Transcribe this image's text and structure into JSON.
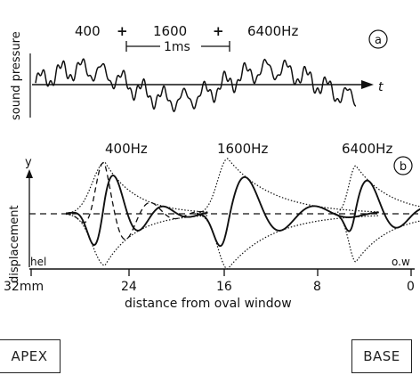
{
  "panel_a": {
    "freq_1": "400",
    "plus_1": "+",
    "freq_2": "1600",
    "plus_2": "+",
    "freq_3": "6400Hz",
    "scale_label": "1ms",
    "y_label": "sound pressure",
    "axis_arrow_label": "t",
    "panel_marker": "a"
  },
  "panel_b": {
    "wave_labels": [
      "400Hz",
      "1600Hz",
      "6400Hz"
    ],
    "y_top_label": "y",
    "y_label": "displacement",
    "left_end_label": "hel",
    "right_end_label": "o.w",
    "ticks": [
      "32mm",
      "24",
      "16",
      "8",
      "0"
    ],
    "x_label": "distance from oval window",
    "panel_marker": "b"
  },
  "boxes": {
    "apex": "APEX",
    "base": "BASE"
  }
}
